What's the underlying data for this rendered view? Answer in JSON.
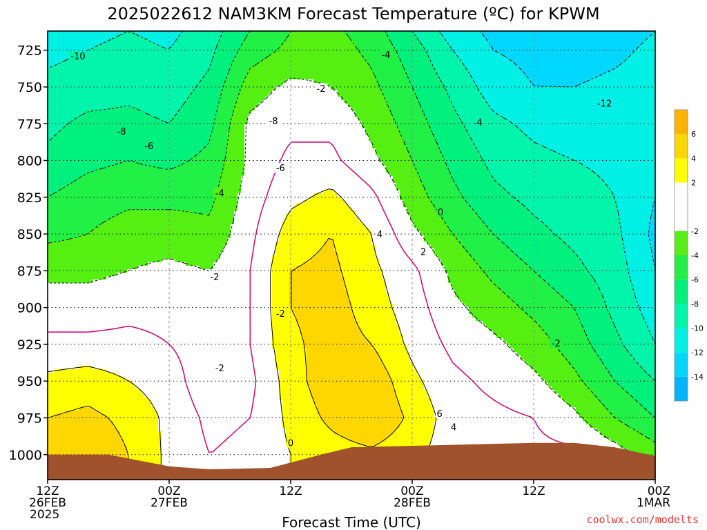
{
  "title": "2025022612 NAM3KM Forecast Temperature (ºC) for KPWM",
  "xlabel": "Forecast Time (UTC)",
  "credit": "coolwx.com/modelts",
  "colors": {
    "bins": [
      "#00b4ff",
      "#00d7ff",
      "#00f0e6",
      "#00f5aa",
      "#00f07d",
      "#21f046",
      "#55f012",
      "#ffffff",
      "#ffff00",
      "#ffd700",
      "#ffb400"
    ],
    "terrain": "#a0522d",
    "freezing_line": "#cc1177",
    "positive_contour": "#000000",
    "negative_contour": "#000000",
    "credit": "#e8302a"
  },
  "chart_data": {
    "type": "heatmap",
    "title": "2025022612 NAM3KM Forecast Temperature (ºC) for KPWM",
    "xlabel": "Forecast Time (UTC)",
    "ylabel": "",
    "x_ticks": [
      {
        "hour": 0,
        "lines": [
          "12Z",
          "26FEB",
          "2025"
        ]
      },
      {
        "hour": 12,
        "lines": [
          "00Z",
          "27FEB"
        ]
      },
      {
        "hour": 24,
        "lines": [
          "12Z"
        ]
      },
      {
        "hour": 36,
        "lines": [
          "00Z",
          "28FEB"
        ]
      },
      {
        "hour": 48,
        "lines": [
          "12Z"
        ]
      },
      {
        "hour": 60,
        "lines": [
          "00Z",
          "1MAR"
        ]
      }
    ],
    "xlim": [
      0,
      60
    ],
    "y_ticks": [
      725,
      750,
      775,
      800,
      825,
      850,
      875,
      900,
      925,
      950,
      975,
      1000
    ],
    "ylim": [
      1017,
      712
    ],
    "colorbar": {
      "ticks": [
        6,
        4,
        2,
        -2,
        -4,
        -6,
        -8,
        -10,
        -12,
        -14
      ],
      "range": [
        -16,
        8
      ]
    },
    "grid": true,
    "times": [
      0,
      4,
      8,
      12,
      16,
      20,
      24,
      28,
      32,
      36,
      40,
      44,
      48,
      52,
      56,
      60
    ],
    "levels": [
      712,
      725,
      750,
      775,
      800,
      825,
      850,
      875,
      900,
      925,
      950,
      975,
      1000,
      1017
    ],
    "temperature_grid": [
      [
        -11,
        -10.5,
        -10,
        -10.5,
        -9,
        -6,
        -4,
        -3.5,
        -5,
        -8,
        -11,
        -12.5,
        -13,
        -13.5,
        -13,
        -12
      ],
      [
        -10.5,
        -10,
        -9.5,
        -10,
        -8.5,
        -5,
        -3.5,
        -3,
        -4.5,
        -7,
        -10,
        -12,
        -12.5,
        -13,
        -12.5,
        -11.5
      ],
      [
        -9.5,
        -9,
        -8.5,
        -9,
        -7.5,
        -3,
        -1.5,
        -2,
        -3.5,
        -6,
        -8.5,
        -11,
        -12,
        -12,
        -11.5,
        -11
      ],
      [
        -8.5,
        -7.5,
        -7.5,
        -8,
        -6.5,
        -1.5,
        -0.5,
        -0.5,
        -2.5,
        -5,
        -7.5,
        -9.5,
        -10.5,
        -11,
        -11,
        -10.5
      ],
      [
        -7.5,
        -6.5,
        -6,
        -6.5,
        -5.5,
        -1.5,
        0.5,
        0.5,
        -1.5,
        -4,
        -6.5,
        -8.5,
        -9.5,
        -10,
        -10.5,
        -11.5
      ],
      [
        -6,
        -5,
        -4.5,
        -4.5,
        -4.5,
        -1,
        1.5,
        2.5,
        0.5,
        -3,
        -5.5,
        -7.5,
        -8.5,
        -9,
        -10,
        -12
      ],
      [
        -4.5,
        -4,
        -3,
        -3,
        -3.5,
        -0.5,
        3,
        4,
        2,
        -1.5,
        -4,
        -6,
        -7.5,
        -8.5,
        -9.5,
        -12.5
      ],
      [
        -2.5,
        -2.5,
        -2,
        -1.5,
        -2,
        0,
        4,
        4.5,
        2.5,
        0.5,
        -2.5,
        -4.5,
        -6,
        -7.5,
        -9,
        -12
      ],
      [
        -1,
        -1,
        -0.5,
        -0.5,
        -1.5,
        0,
        4,
        5,
        3,
        1,
        -1.5,
        -3,
        -4.5,
        -6,
        -8.5,
        -11
      ],
      [
        0.5,
        0.5,
        0.5,
        0,
        -1,
        0,
        3.5,
        5,
        4,
        1.5,
        -0.5,
        -1.5,
        -3,
        -5,
        -7.5,
        -10
      ],
      [
        2.5,
        3,
        2,
        1,
        -1.5,
        -0.5,
        3,
        5.5,
        5.5,
        2.5,
        0.5,
        -0.5,
        -1.5,
        -3.5,
        -6,
        -8
      ],
      [
        4,
        4.5,
        3.5,
        1.5,
        -0.5,
        0,
        2.5,
        4.5,
        6,
        3.5,
        1,
        0.5,
        0,
        -1.5,
        -4,
        -6
      ],
      [
        5,
        5.5,
        4,
        1.5,
        0,
        0.5,
        2,
        3,
        3.5,
        2.5,
        1,
        0.5,
        0.5,
        0.5,
        -1,
        -3
      ],
      [
        5,
        5.5,
        4,
        1.5,
        0,
        0.5,
        2,
        3,
        3.5,
        2.5,
        1,
        0.5,
        0.5,
        0.5,
        -1,
        -3
      ]
    ],
    "surface_pressure": [
      {
        "hour": 0,
        "p": 1000
      },
      {
        "hour": 6,
        "p": 1000
      },
      {
        "hour": 12,
        "p": 1008
      },
      {
        "hour": 16,
        "p": 1010
      },
      {
        "hour": 22,
        "p": 1009
      },
      {
        "hour": 27,
        "p": 1000
      },
      {
        "hour": 30,
        "p": 995
      },
      {
        "hour": 36,
        "p": 994
      },
      {
        "hour": 42,
        "p": 993
      },
      {
        "hour": 48,
        "p": 992
      },
      {
        "hour": 52,
        "p": 992
      },
      {
        "hour": 56,
        "p": 995
      },
      {
        "hour": 60,
        "p": 1001
      }
    ],
    "contour_labels": [
      {
        "text": "-10",
        "hour": 3,
        "p": 729
      },
      {
        "text": "-8",
        "hour": 7.3,
        "p": 780
      },
      {
        "text": "-6",
        "hour": 10,
        "p": 790
      },
      {
        "text": "-4",
        "hour": 17,
        "p": 822
      },
      {
        "text": "-2",
        "hour": 16.5,
        "p": 879
      },
      {
        "text": "-2",
        "hour": 23,
        "p": 904
      },
      {
        "text": "-2",
        "hour": 17,
        "p": 941
      },
      {
        "text": "0",
        "hour": 24,
        "p": 992
      },
      {
        "text": "-8",
        "hour": 22.3,
        "p": 773
      },
      {
        "text": "-6",
        "hour": 23,
        "p": 805
      },
      {
        "text": "-2",
        "hour": 27,
        "p": 751
      },
      {
        "text": "-4",
        "hour": 33.4,
        "p": 728
      },
      {
        "text": "4",
        "hour": 32.8,
        "p": 850
      },
      {
        "text": "2",
        "hour": 37.1,
        "p": 862
      },
      {
        "text": "0",
        "hour": 38.8,
        "p": 835
      },
      {
        "text": "6",
        "hour": 38.7,
        "p": 972
      },
      {
        "text": "4",
        "hour": 40.1,
        "p": 981
      },
      {
        "text": "-4",
        "hour": 42.5,
        "p": 774
      },
      {
        "text": "-2",
        "hour": 50.2,
        "p": 924
      },
      {
        "text": "-12",
        "hour": 55,
        "p": 761
      }
    ]
  }
}
